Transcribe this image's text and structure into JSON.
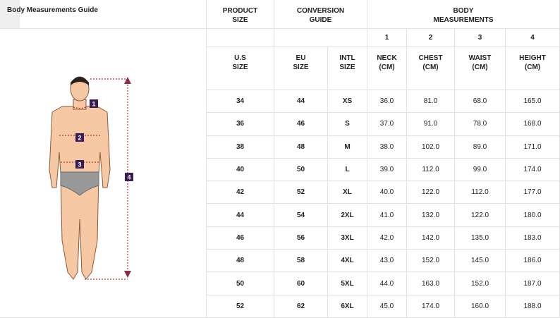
{
  "title": "Body Measurements Guide",
  "header": {
    "product_size": [
      "PRODUCT",
      "SIZE"
    ],
    "conversion_guide": [
      "CONVERSION",
      "GUIDE"
    ],
    "body_measurements": [
      "BODY",
      "MEASUREMENTS"
    ]
  },
  "column_numbers": [
    "1",
    "2",
    "3",
    "4"
  ],
  "subheaders": [
    [
      "U.S",
      "SIZE"
    ],
    [
      "EU",
      "SIZE"
    ],
    [
      "INTL",
      "SIZE"
    ],
    [
      "NECK",
      "(CM)"
    ],
    [
      "CHEST",
      "(CM)"
    ],
    [
      "WAIST",
      "(CM)"
    ],
    [
      "HEIGHT",
      "(CM)"
    ]
  ],
  "figure": {
    "markers": [
      "1",
      "2",
      "3",
      "4"
    ]
  },
  "table": {
    "rows": [
      [
        "34",
        "44",
        "XS",
        "36.0",
        "81.0",
        "68.0",
        "165.0"
      ],
      [
        "36",
        "46",
        "S",
        "37.0",
        "91.0",
        "78.0",
        "168.0"
      ],
      [
        "38",
        "48",
        "M",
        "38.0",
        "102.0",
        "89.0",
        "171.0"
      ],
      [
        "40",
        "50",
        "L",
        "39.0",
        "112.0",
        "99.0",
        "174.0"
      ],
      [
        "42",
        "52",
        "XL",
        "40.0",
        "122.0",
        "112.0",
        "177.0"
      ],
      [
        "44",
        "54",
        "2XL",
        "41.0",
        "132.0",
        "122.0",
        "180.0"
      ],
      [
        "46",
        "56",
        "3XL",
        "42.0",
        "142.0",
        "135.0",
        "183.0"
      ],
      [
        "48",
        "58",
        "4XL",
        "43.0",
        "152.0",
        "145.0",
        "186.0"
      ],
      [
        "50",
        "60",
        "5XL",
        "44.0",
        "163.0",
        "152.0",
        "187.0"
      ],
      [
        "52",
        "62",
        "6XL",
        "45.0",
        "174.0",
        "160.0",
        "188.0"
      ]
    ]
  }
}
